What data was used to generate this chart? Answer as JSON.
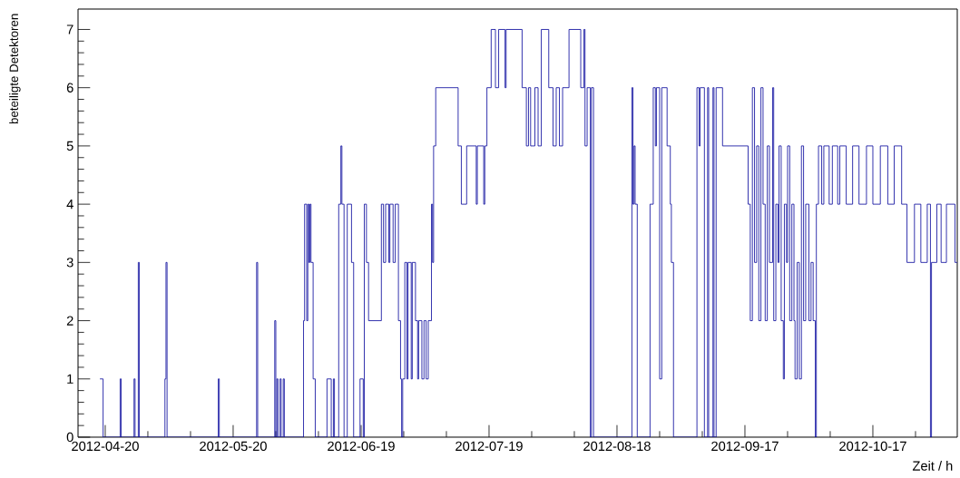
{
  "chart_data": {
    "type": "step",
    "xlabel": "Zeit / h",
    "ylabel": "beteiligte Detektoren",
    "color": "#000099",
    "grid": false,
    "xlim": [
      "2012-04-13T15:00",
      "2012-11-05T19:00"
    ],
    "ylim": [
      0,
      7.35
    ],
    "xticks": [
      "2012-04-20",
      {
        "value": "2012-04-30",
        "label": null
      },
      {
        "value": "2012-05-10",
        "label": null
      },
      "2012-05-20",
      {
        "value": "2012-05-30",
        "label": null
      },
      {
        "value": "2012-06-09",
        "label": null
      },
      "2012-06-19",
      {
        "value": "2012-06-29",
        "label": null
      },
      {
        "value": "2012-07-09",
        "label": null
      },
      "2012-07-19",
      {
        "value": "2012-07-29",
        "label": null
      },
      {
        "value": "2012-08-08",
        "label": null
      },
      "2012-08-18",
      {
        "value": "2012-08-28",
        "label": null
      },
      {
        "value": "2012-09-07",
        "label": null
      },
      "2012-09-17",
      {
        "value": "2012-09-27",
        "label": null
      },
      {
        "value": "2012-10-07",
        "label": null
      },
      "2012-10-17",
      {
        "value": "2012-10-27",
        "label": null
      }
    ],
    "yticks": [
      0,
      1,
      2,
      3,
      4,
      5,
      6,
      7
    ],
    "x": [
      "2012-04-18T18:00",
      "2012-04-19T12:00",
      "2012-04-23T12:00",
      "2012-04-23T18:00",
      "2012-04-26T18:00",
      "2012-04-27T00:00",
      "2012-04-27T18:00",
      "2012-04-28T00:00",
      "2012-05-04T00:00",
      "2012-05-04T06:00",
      "2012-05-04T12:00",
      "2012-05-16T12:00",
      "2012-05-16T18:00",
      "2012-05-25T12:00",
      "2012-05-25T18:00",
      "2012-05-29T18:00",
      "2012-05-30T00:00",
      "2012-05-30T06:00",
      "2012-05-30T12:00",
      "2012-05-31T00:00",
      "2012-05-31T06:00",
      "2012-05-31T18:00",
      "2012-06-01T00:00",
      "2012-06-05T12:00",
      "2012-06-05T18:00",
      "2012-06-06T06:00",
      "2012-06-06T12:00",
      "2012-06-06T18:00",
      "2012-06-07T00:00",
      "2012-06-07T06:00",
      "2012-06-07T18:00",
      "2012-06-08T06:00",
      "2012-06-11T00:00",
      "2012-06-12T00:00",
      "2012-06-12T12:00",
      "2012-06-12T18:00",
      "2012-06-13T18:00",
      "2012-06-14T06:00",
      "2012-06-14T12:00",
      "2012-06-15T00:00",
      "2012-06-15T18:00",
      "2012-06-16T18:00",
      "2012-06-17T06:00",
      "2012-06-18T18:00",
      "2012-06-19T12:00",
      "2012-06-19T18:00",
      "2012-06-20T06:00",
      "2012-06-20T18:00",
      "2012-06-23T18:00",
      "2012-06-24T06:00",
      "2012-06-24T18:00",
      "2012-06-25T12:00",
      "2012-06-25T18:00",
      "2012-06-26T12:00",
      "2012-06-27T00:00",
      "2012-06-27T18:00",
      "2012-06-28T06:00",
      "2012-06-28T12:00",
      "2012-06-28T18:00",
      "2012-06-29T06:00",
      "2012-06-29T18:00",
      "2012-06-30T00:00",
      "2012-06-30T18:00",
      "2012-07-01T00:00",
      "2012-07-01T18:00",
      "2012-07-02T06:00",
      "2012-07-02T12:00",
      "2012-07-03T06:00",
      "2012-07-03T18:00",
      "2012-07-04T06:00",
      "2012-07-04T18:00",
      "2012-07-05T12:00",
      "2012-07-05T18:00",
      "2012-07-06T00:00",
      "2012-07-06T12:00",
      "2012-07-11T18:00",
      "2012-07-12T12:00",
      "2012-07-13T18:00",
      "2012-07-16T00:00",
      "2012-07-16T06:00",
      "2012-07-17T18:00",
      "2012-07-18T00:00",
      "2012-07-18T12:00",
      "2012-07-19T12:00",
      "2012-07-20T12:00",
      "2012-07-21T06:00",
      "2012-07-22T18:00",
      "2012-07-23T00:00",
      "2012-07-26T18:00",
      "2012-07-27T18:00",
      "2012-07-28T06:00",
      "2012-07-28T18:00",
      "2012-07-29T18:00",
      "2012-07-30T12:00",
      "2012-07-31T06:00",
      "2012-08-02T00:00",
      "2012-08-03T00:00",
      "2012-08-03T18:00",
      "2012-08-04T12:00",
      "2012-08-05T06:00",
      "2012-08-06T18:00",
      "2012-08-09T12:00",
      "2012-08-10T06:00",
      "2012-08-10T12:00",
      "2012-08-11T00:00",
      "2012-08-11T18:00",
      "2012-08-12T00:00",
      "2012-08-12T12:00",
      "2012-08-21T12:00",
      "2012-08-21T18:00",
      "2012-08-22T00:00",
      "2012-08-22T06:00",
      "2012-08-22T18:00",
      "2012-08-25T18:00",
      "2012-08-26T12:00",
      "2012-08-27T00:00",
      "2012-08-27T06:00",
      "2012-08-28T00:00",
      "2012-08-28T12:00",
      "2012-08-29T18:00",
      "2012-08-30T12:00",
      "2012-08-30T18:00",
      "2012-08-31T06:00",
      "2012-09-05T18:00",
      "2012-09-06T06:00",
      "2012-09-06T12:00",
      "2012-09-07T12:00",
      "2012-09-08T06:00",
      "2012-09-08T12:00",
      "2012-09-09T12:00",
      "2012-09-09T18:00",
      "2012-09-10T06:00",
      "2012-09-11T18:00",
      "2012-09-17T18:00",
      "2012-09-18T06:00",
      "2012-09-18T18:00",
      "2012-09-19T06:00",
      "2012-09-19T18:00",
      "2012-09-20T06:00",
      "2012-09-20T18:00",
      "2012-09-21T06:00",
      "2012-09-21T18:00",
      "2012-09-22T06:00",
      "2012-09-22T18:00",
      "2012-09-23T12:00",
      "2012-09-23T18:00",
      "2012-09-24T06:00",
      "2012-09-24T18:00",
      "2012-09-25T00:00",
      "2012-09-25T12:00",
      "2012-09-26T00:00",
      "2012-09-26T06:00",
      "2012-09-26T18:00",
      "2012-09-27T00:00",
      "2012-09-27T12:00",
      "2012-09-28T00:00",
      "2012-09-28T12:00",
      "2012-09-28T18:00",
      "2012-09-29T06:00",
      "2012-09-29T18:00",
      "2012-09-30T06:00",
      "2012-09-30T18:00",
      "2012-10-01T06:00",
      "2012-10-02T00:00",
      "2012-10-02T12:00",
      "2012-10-03T00:00",
      "2012-10-03T12:00",
      "2012-10-03T18:00",
      "2012-10-04T06:00",
      "2012-10-05T00:00",
      "2012-10-05T12:00",
      "2012-10-06T18:00",
      "2012-10-07T12:00",
      "2012-10-08T18:00",
      "2012-10-09T06:00",
      "2012-10-10T18:00",
      "2012-10-12T06:00",
      "2012-10-13T18:00",
      "2012-10-15T12:00",
      "2012-10-17T00:00",
      "2012-10-18T18:00",
      "2012-10-20T12:00",
      "2012-10-22T00:00",
      "2012-10-23T18:00",
      "2012-10-25T00:00",
      "2012-10-26T18:00",
      "2012-10-28T06:00",
      "2012-10-29T18:00",
      "2012-10-30T12:00",
      "2012-10-30T18:00",
      "2012-11-01T00:00",
      "2012-11-02T00:00",
      "2012-11-03T06:00",
      "2012-11-05T06:00",
      "2012-11-05T18:00"
    ],
    "values": [
      1,
      0,
      1,
      0,
      1,
      0,
      3,
      0,
      1,
      3,
      0,
      1,
      0,
      3,
      0,
      2,
      0,
      1,
      0,
      1,
      0,
      1,
      0,
      2,
      4,
      2,
      4,
      3,
      4,
      3,
      1,
      0,
      1,
      0,
      1,
      0,
      4,
      5,
      4,
      0,
      4,
      3,
      0,
      1,
      0,
      4,
      3,
      2,
      4,
      3,
      4,
      3,
      4,
      3,
      4,
      2,
      1,
      0,
      1,
      3,
      1,
      3,
      1,
      3,
      2,
      1,
      2,
      1,
      2,
      1,
      2,
      4,
      3,
      5,
      6,
      5,
      4,
      5,
      4,
      5,
      4,
      5,
      6,
      7,
      6,
      7,
      6,
      7,
      6,
      5,
      6,
      5,
      6,
      5,
      7,
      6,
      5,
      6,
      5,
      6,
      7,
      6,
      7,
      5,
      6,
      0,
      6,
      0,
      6,
      4,
      5,
      4,
      0,
      4,
      6,
      5,
      6,
      1,
      6,
      5,
      4,
      3,
      0,
      6,
      5,
      6,
      0,
      6,
      0,
      6,
      0,
      6,
      5,
      4,
      2,
      6,
      3,
      5,
      2,
      6,
      4,
      2,
      5,
      3,
      6,
      2,
      4,
      3,
      5,
      2,
      1,
      4,
      3,
      5,
      2,
      4,
      2,
      1,
      3,
      1,
      5,
      2,
      4,
      2,
      3,
      2,
      0,
      4,
      5,
      4,
      5,
      4,
      5,
      4,
      5,
      4,
      5,
      4,
      5,
      4,
      5,
      4,
      5,
      4,
      3,
      4,
      3,
      4,
      0,
      3,
      4,
      3,
      4,
      3,
      3
    ]
  }
}
